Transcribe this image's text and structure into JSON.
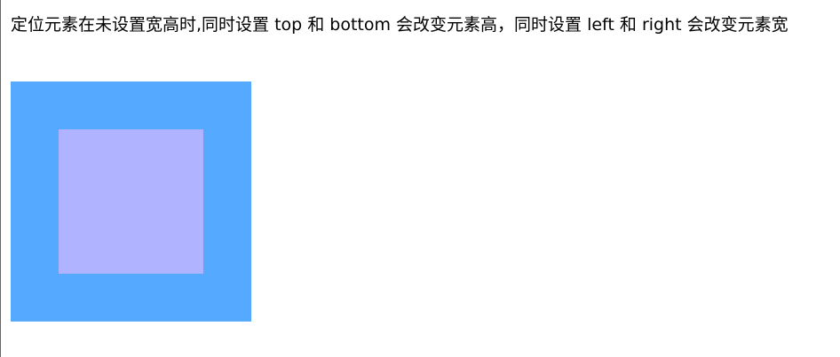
{
  "page": {
    "description": "定位元素在未设置宽高时,同时设置 top 和 bottom 会改变元素高，同时设置 left 和 right 会改变元素宽"
  },
  "colors": {
    "outer_box": "#55aaff",
    "inner_box": "#b0b3ff",
    "page_background": "#ffffff",
    "text": "#000000"
  }
}
